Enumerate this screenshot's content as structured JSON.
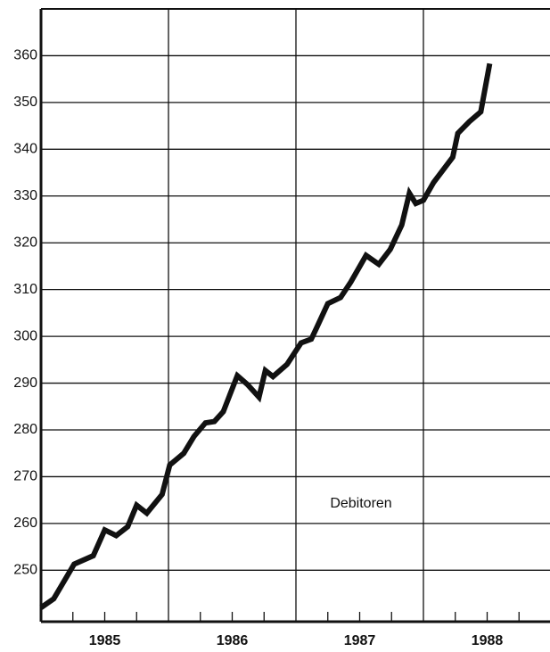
{
  "chart_data": {
    "type": "line",
    "annotation": "Debitoren",
    "x": [
      1985.0,
      1985.1,
      1985.26,
      1985.41,
      1985.5,
      1985.59,
      1985.68,
      1985.75,
      1985.83,
      1985.95,
      1986.01,
      1986.12,
      1986.2,
      1986.29,
      1986.36,
      1986.43,
      1986.54,
      1986.62,
      1986.71,
      1986.76,
      1986.82,
      1986.93,
      1987.04,
      1987.12,
      1987.16,
      1987.25,
      1987.35,
      1987.43,
      1987.55,
      1987.65,
      1987.74,
      1987.83,
      1987.89,
      1987.94,
      1988.0,
      1988.08,
      1988.23,
      1988.27,
      1988.36,
      1988.45,
      1988.52
    ],
    "series": [
      {
        "name": "Debitoren",
        "color": "#111111",
        "values": [
          242.0,
          243.9,
          251.3,
          253.1,
          258.6,
          257.4,
          259.3,
          263.9,
          262.2,
          266.2,
          272.5,
          275.0,
          278.6,
          281.5,
          281.8,
          283.9,
          291.6,
          289.7,
          287.0,
          292.7,
          291.4,
          294.0,
          298.6,
          299.4,
          301.7,
          307.0,
          308.3,
          311.6,
          317.3,
          315.4,
          318.6,
          323.8,
          330.6,
          328.4,
          329.1,
          332.9,
          338.3,
          343.4,
          345.9,
          348.0,
          358.3
        ]
      }
    ],
    "xlim": [
      1985,
      1989
    ],
    "xticks": [
      {
        "value": 1985.5,
        "label": "1985"
      },
      {
        "value": 1986.5,
        "label": "1986"
      },
      {
        "value": 1987.5,
        "label": "1987"
      },
      {
        "value": 1988.5,
        "label": "1988"
      }
    ],
    "xgrid": [
      1986,
      1987,
      1988
    ],
    "xminor": [
      1985.25,
      1985.75,
      1986.25,
      1986.75,
      1987.25,
      1987.75,
      1988.25,
      1988.75
    ],
    "ylim": [
      239,
      370
    ],
    "yticks": [
      250,
      260,
      270,
      280,
      290,
      300,
      310,
      320,
      330,
      340,
      350,
      360
    ],
    "grid": true
  }
}
